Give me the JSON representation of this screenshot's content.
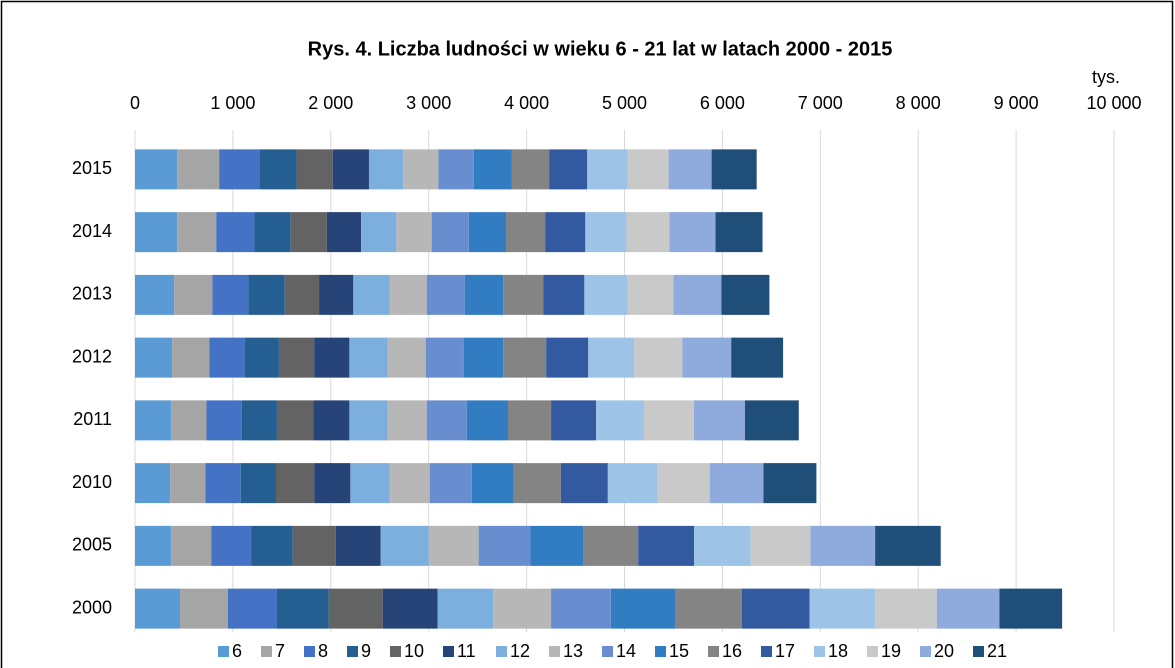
{
  "chart_data": {
    "type": "stacked_bar_horizontal",
    "title": "Rys. 4. Liczba ludności w wieku 6 - 21 lat w latach 2000 - 2015",
    "x_unit_label": "tys.",
    "categories": [
      "2015",
      "2014",
      "2013",
      "2012",
      "2011",
      "2010",
      "2005",
      "2000"
    ],
    "xlim": [
      0,
      10000
    ],
    "xticks": [
      0,
      {
        "value": 1000,
        "label": "1 000"
      },
      {
        "value": 2000,
        "label": "2 000"
      },
      {
        "value": 3000,
        "label": "3 000"
      },
      {
        "value": 4000,
        "label": "4 000"
      },
      {
        "value": 5000,
        "label": "5 000"
      },
      {
        "value": 6000,
        "label": "6 000"
      },
      {
        "value": 7000,
        "label": "7 000"
      },
      {
        "value": 8000,
        "label": "8 000"
      },
      {
        "value": 9000,
        "label": "9 000"
      },
      {
        "value": 10000,
        "label": "10 000"
      }
    ],
    "grid": true,
    "legend": "bottom",
    "series": [
      {
        "name": "6",
        "color": "#5b9bd5",
        "values": [
          430,
          430,
          400,
          380,
          370,
          360,
          370,
          460
        ]
      },
      {
        "name": "7",
        "color": "#a5a5a5",
        "values": [
          430,
          400,
          390,
          380,
          360,
          360,
          410,
          490
        ]
      },
      {
        "name": "8",
        "color": "#4472c4",
        "values": [
          410,
          390,
          370,
          360,
          360,
          360,
          410,
          500
        ]
      },
      {
        "name": "9",
        "color": "#255e91",
        "values": [
          380,
          370,
          370,
          350,
          360,
          360,
          420,
          530
        ]
      },
      {
        "name": "10",
        "color": "#636363",
        "values": [
          370,
          370,
          350,
          360,
          370,
          390,
          440,
          550
        ]
      },
      {
        "name": "11",
        "color": "#264478",
        "values": [
          370,
          350,
          350,
          360,
          370,
          370,
          460,
          560
        ]
      },
      {
        "name": "12",
        "color": "#7cafdd",
        "values": [
          350,
          360,
          370,
          390,
          390,
          400,
          490,
          570
        ]
      },
      {
        "name": "13",
        "color": "#b7b7b7",
        "values": [
          360,
          360,
          380,
          390,
          400,
          410,
          510,
          590
        ]
      },
      {
        "name": "14",
        "color": "#698ed0",
        "values": [
          360,
          380,
          390,
          390,
          410,
          430,
          530,
          610
        ]
      },
      {
        "name": "15",
        "color": "#327dc2",
        "values": [
          390,
          380,
          390,
          400,
          420,
          430,
          540,
          660
        ]
      },
      {
        "name": "16",
        "color": "#848484",
        "values": [
          380,
          400,
          410,
          440,
          440,
          480,
          560,
          680
        ]
      },
      {
        "name": "17",
        "color": "#335aa1",
        "values": [
          390,
          410,
          420,
          430,
          460,
          480,
          570,
          690
        ]
      },
      {
        "name": "18",
        "color": "#9dc3e6",
        "values": [
          410,
          420,
          440,
          470,
          490,
          510,
          580,
          670
        ]
      },
      {
        "name": "19",
        "color": "#c9c9c9",
        "values": [
          420,
          440,
          470,
          490,
          510,
          530,
          610,
          630
        ]
      },
      {
        "name": "20",
        "color": "#8faadc",
        "values": [
          440,
          470,
          490,
          500,
          520,
          550,
          660,
          640
        ]
      },
      {
        "name": "21",
        "color": "#1f4e79",
        "values": [
          460,
          480,
          490,
          530,
          550,
          540,
          670,
          640
        ]
      }
    ]
  }
}
